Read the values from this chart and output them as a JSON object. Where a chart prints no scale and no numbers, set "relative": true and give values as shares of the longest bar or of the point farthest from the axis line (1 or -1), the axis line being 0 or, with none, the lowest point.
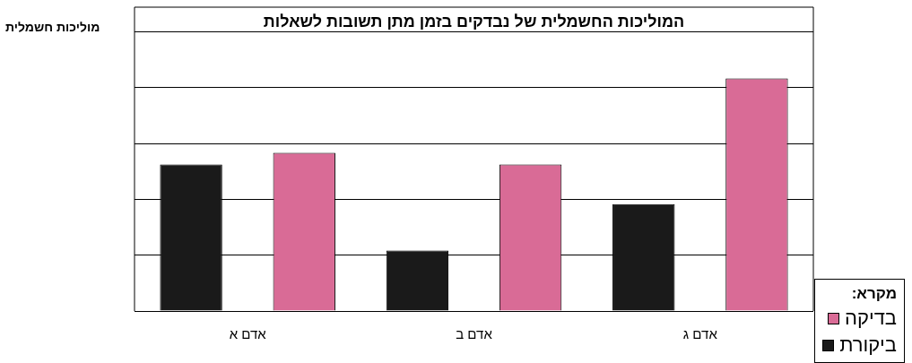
{
  "chart_data": {
    "type": "bar",
    "title": "המוליכות החשמלית של נבדקים בזמן מתן תשובות לשאלות",
    "ylabel": "מוליכות חשמלית",
    "legend_title": "מקרא:",
    "categories": [
      "אדם א",
      "אדם ב",
      "אדם ג"
    ],
    "relative": true,
    "series": [
      {
        "name": "ביקורת",
        "color": "#1a1a1a",
        "values": [
          0.63,
          0.26,
          0.46
        ]
      },
      {
        "name": "בדיקה",
        "color": "#d96b96",
        "values": [
          0.68,
          0.63,
          1
        ]
      }
    ],
    "grid": "y",
    "legend": "bottom right"
  }
}
